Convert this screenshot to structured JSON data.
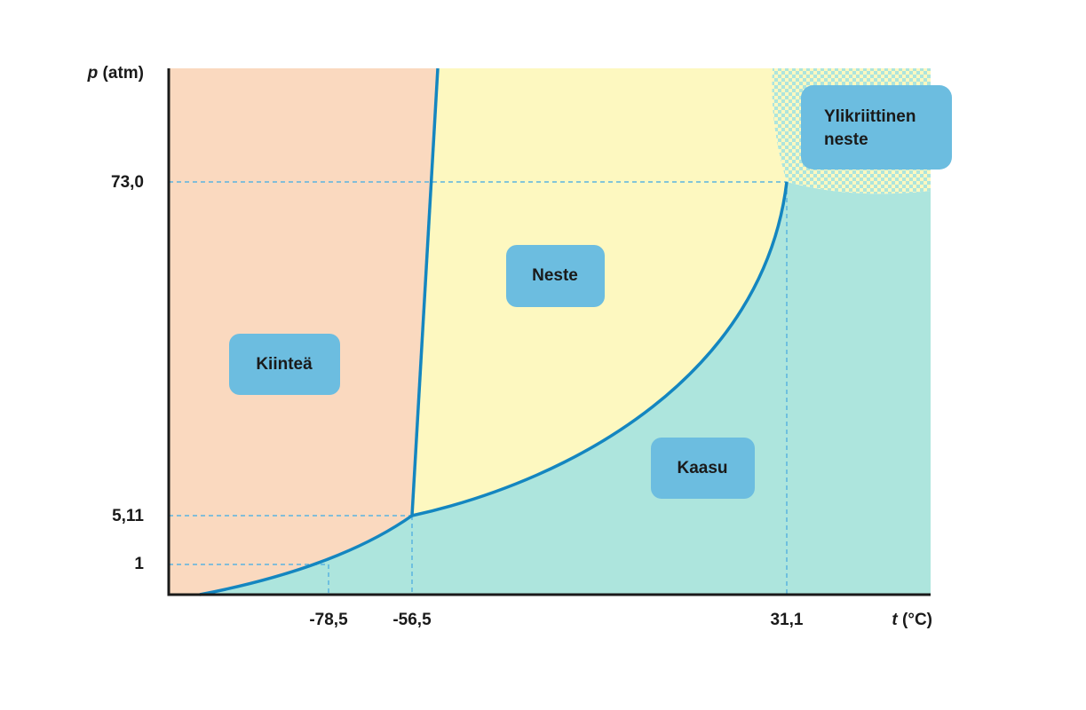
{
  "y_axis": {
    "variable": "p",
    "unit": "(atm)",
    "ticks": [
      "73,0",
      "5,11",
      "1"
    ]
  },
  "x_axis": {
    "variable": "t",
    "unit": "(°C)",
    "ticks": [
      "-78,5",
      "-56,5",
      "31,1"
    ]
  },
  "regions": [
    {
      "lines": [
        "Kiinteä"
      ]
    },
    {
      "lines": [
        "Neste"
      ]
    },
    {
      "lines": [
        "Kaasu"
      ]
    },
    {
      "lines": [
        "Ylikriittinen",
        "neste"
      ]
    }
  ]
}
